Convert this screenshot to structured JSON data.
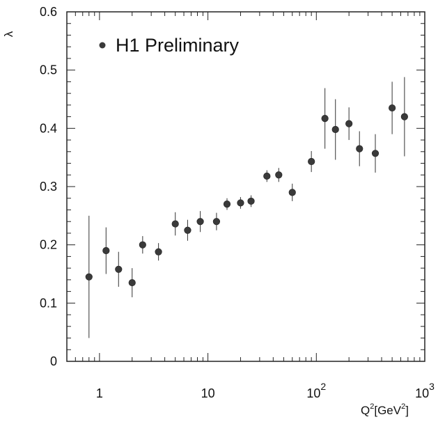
{
  "chart_data": {
    "type": "scatter",
    "title": "",
    "xlabel": "Q^2[GeV^2]",
    "xlabel_parts": {
      "base": "Q",
      "sup1": "2",
      "bracket_open": "[GeV",
      "sup2": "2",
      "bracket_close": "]"
    },
    "ylabel": "λ",
    "x_scale": "log",
    "xlim": [
      0.5,
      1000
    ],
    "ylim": [
      0,
      0.6
    ],
    "y_ticks": [
      "0",
      "0.1",
      "0.2",
      "0.3",
      "0.4",
      "0.5",
      "0.6"
    ],
    "x_ticks": [
      {
        "value": 1,
        "base": "1",
        "exp": ""
      },
      {
        "value": 10,
        "base": "10",
        "exp": ""
      },
      {
        "value": 100,
        "base": "10",
        "exp": "2"
      },
      {
        "value": 1000,
        "base": "10",
        "exp": "3"
      }
    ],
    "grid": false,
    "legend": {
      "position": "top-left",
      "entries": [
        "H1 Preliminary"
      ]
    },
    "series": [
      {
        "name": "H1 Preliminary",
        "marker_color": "#3a3a3a",
        "points": [
          {
            "x": 0.8,
            "y": 0.145,
            "err": 0.105
          },
          {
            "x": 1.15,
            "y": 0.19,
            "err": 0.04
          },
          {
            "x": 1.5,
            "y": 0.158,
            "err": 0.03
          },
          {
            "x": 2.0,
            "y": 0.135,
            "err": 0.025
          },
          {
            "x": 2.5,
            "y": 0.2,
            "err": 0.015
          },
          {
            "x": 3.5,
            "y": 0.188,
            "err": 0.015
          },
          {
            "x": 5.0,
            "y": 0.236,
            "err": 0.02
          },
          {
            "x": 6.5,
            "y": 0.225,
            "err": 0.018
          },
          {
            "x": 8.5,
            "y": 0.24,
            "err": 0.018
          },
          {
            "x": 12,
            "y": 0.24,
            "err": 0.015
          },
          {
            "x": 15,
            "y": 0.27,
            "err": 0.01
          },
          {
            "x": 20,
            "y": 0.272,
            "err": 0.01
          },
          {
            "x": 25,
            "y": 0.275,
            "err": 0.01
          },
          {
            "x": 35,
            "y": 0.318,
            "err": 0.01
          },
          {
            "x": 45,
            "y": 0.32,
            "err": 0.012
          },
          {
            "x": 60,
            "y": 0.29,
            "err": 0.015
          },
          {
            "x": 90,
            "y": 0.343,
            "err": 0.018
          },
          {
            "x": 120,
            "y": 0.417,
            "err": 0.052
          },
          {
            "x": 150,
            "y": 0.398,
            "err": 0.052
          },
          {
            "x": 200,
            "y": 0.408,
            "err": 0.028
          },
          {
            "x": 250,
            "y": 0.365,
            "err": 0.03
          },
          {
            "x": 350,
            "y": 0.357,
            "err": 0.033
          },
          {
            "x": 500,
            "y": 0.435,
            "err": 0.045
          },
          {
            "x": 650,
            "y": 0.42,
            "err": 0.068
          }
        ]
      }
    ]
  }
}
